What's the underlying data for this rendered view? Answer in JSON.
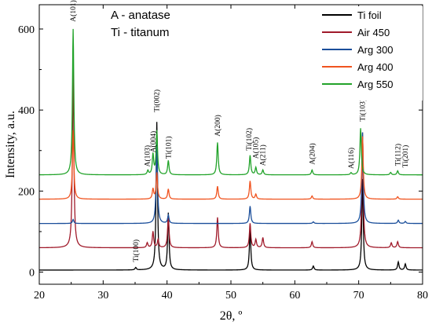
{
  "chart_data": {
    "type": "line",
    "xlabel": "2θ, º",
    "ylabel": "Intensity, a.u.",
    "xlim": [
      20,
      80
    ],
    "ylim": [
      -30,
      660
    ],
    "xticks": [
      20,
      30,
      40,
      50,
      60,
      70,
      80
    ],
    "yticks": [
      0,
      200,
      400,
      600
    ],
    "legend_position": "top-right",
    "phase_notes": [
      "A - anatase",
      "Ti - titanum"
    ],
    "series": [
      {
        "name": "Ti foil",
        "color": "#000000",
        "baseline": 5,
        "peaks": [
          [
            35.1,
            6
          ],
          [
            38.4,
            365
          ],
          [
            40.2,
            140
          ],
          [
            53.0,
            100
          ],
          [
            62.9,
            10
          ],
          [
            70.6,
            225
          ],
          [
            76.2,
            20
          ],
          [
            77.3,
            15
          ]
        ]
      },
      {
        "name": "Air 450",
        "color": "#a01a2a",
        "baseline": 60,
        "peaks": [
          [
            25.3,
            455
          ],
          [
            36.9,
            12
          ],
          [
            37.8,
            40
          ],
          [
            38.6,
            20
          ],
          [
            40.2,
            80
          ],
          [
            47.9,
            75
          ],
          [
            53.0,
            60
          ],
          [
            53.9,
            20
          ],
          [
            55.0,
            25
          ],
          [
            62.7,
            15
          ],
          [
            70.6,
            285
          ],
          [
            75.1,
            12
          ],
          [
            76.1,
            15
          ]
        ]
      },
      {
        "name": "Arg 300",
        "color": "#1a4e9a",
        "baseline": 120,
        "peaks": [
          [
            25.3,
            10
          ],
          [
            38.4,
            205
          ],
          [
            40.2,
            20
          ],
          [
            53.0,
            43
          ],
          [
            62.9,
            4
          ],
          [
            70.6,
            225
          ],
          [
            76.2,
            8
          ],
          [
            77.3,
            5
          ]
        ]
      },
      {
        "name": "Arg 400",
        "color": "#f0531f",
        "baseline": 180,
        "peaks": [
          [
            25.3,
            170
          ],
          [
            37.8,
            25
          ],
          [
            38.4,
            65
          ],
          [
            40.2,
            25
          ],
          [
            47.9,
            32
          ],
          [
            53.0,
            45
          ],
          [
            53.9,
            12
          ],
          [
            62.7,
            8
          ],
          [
            70.6,
            155
          ],
          [
            76.1,
            6
          ]
        ]
      },
      {
        "name": "Arg 550",
        "color": "#22a32a",
        "baseline": 240,
        "peaks": [
          [
            25.3,
            360
          ],
          [
            37.0,
            10
          ],
          [
            37.8,
            50
          ],
          [
            38.4,
            108
          ],
          [
            40.2,
            35
          ],
          [
            47.9,
            80
          ],
          [
            53.0,
            48
          ],
          [
            53.9,
            18
          ],
          [
            55.0,
            12
          ],
          [
            62.7,
            12
          ],
          [
            68.8,
            5
          ],
          [
            70.3,
            115
          ],
          [
            75.0,
            6
          ],
          [
            76.1,
            10
          ]
        ]
      }
    ],
    "peak_labels": [
      {
        "text": "A(101)",
        "x": 25.3,
        "y": 618
      },
      {
        "text": "A(103)",
        "x": 36.9,
        "y": 260
      },
      {
        "text": "A(004)",
        "x": 37.8,
        "y": 295
      },
      {
        "text": "Ti(002)",
        "x": 38.4,
        "y": 395
      },
      {
        "text": "Ti(101)",
        "x": 40.2,
        "y": 280
      },
      {
        "text": "A(200)",
        "x": 47.9,
        "y": 335
      },
      {
        "text": "Ti(102)",
        "x": 52.8,
        "y": 300
      },
      {
        "text": "A(105)",
        "x": 53.9,
        "y": 280
      },
      {
        "text": "A(211)",
        "x": 55.0,
        "y": 262
      },
      {
        "text": "A(204)",
        "x": 62.7,
        "y": 265
      },
      {
        "text": "A(116)",
        "x": 68.8,
        "y": 255
      },
      {
        "text": "Ti(103)",
        "x": 70.6,
        "y": 372
      },
      {
        "text": "Ti(112)",
        "x": 76.1,
        "y": 262
      },
      {
        "text": "Ti(201)",
        "x": 77.3,
        "y": 258
      },
      {
        "text": "Ti(100)",
        "x": 35.1,
        "y": 25
      }
    ]
  }
}
